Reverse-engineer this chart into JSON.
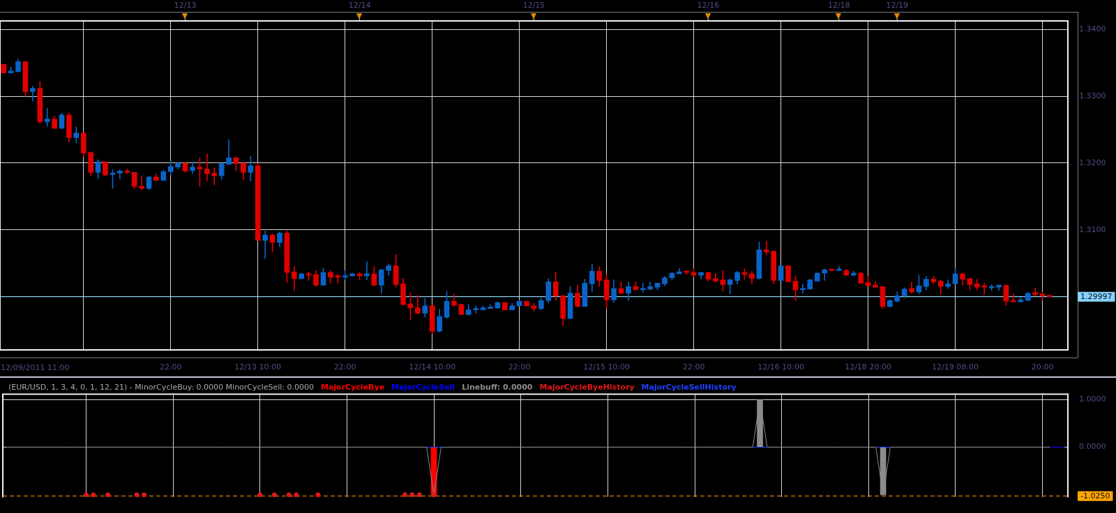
{
  "chart_data": [
    {
      "type": "candlestick",
      "categories": [
        null,
        null,
        null,
        null,
        null,
        null,
        null,
        null,
        null,
        null,
        null,
        null,
        null,
        null,
        null,
        null,
        null,
        null,
        null,
        null,
        null,
        null,
        null,
        "22:00",
        null,
        "12/13",
        null,
        null,
        null,
        null,
        null,
        null,
        null,
        null,
        null,
        "12/13 10:00",
        null,
        null,
        null,
        null,
        null,
        null,
        null,
        null,
        null,
        null,
        null,
        "22:00",
        null,
        "12/14",
        null,
        null,
        null,
        null,
        null,
        null,
        null,
        null,
        null,
        "12/14 10:00",
        null,
        null,
        null,
        null,
        null,
        null,
        null,
        null,
        null,
        null,
        null,
        "22:00",
        null,
        "12/15",
        null,
        null,
        null,
        null,
        null,
        null,
        null,
        null,
        null,
        "12/15 10:00",
        null,
        null,
        null,
        null,
        null,
        null,
        null,
        null,
        null,
        null,
        null,
        "22:00",
        null,
        "12/16",
        null,
        null,
        null,
        null,
        null,
        null,
        null,
        null,
        null,
        "12/16 10:00",
        null,
        null,
        null,
        null,
        null,
        null,
        null,
        "12/18",
        null,
        null,
        null,
        "12/18 20:00",
        null,
        null,
        null,
        "12/19",
        null,
        null,
        null,
        null,
        null,
        null,
        null,
        "12/19 08:00",
        null,
        null,
        null,
        null,
        null,
        null,
        null,
        null,
        null,
        null,
        null,
        "20:00",
        null,
        null,
        null
      ],
      "ohlc": [
        [
          1.3348,
          1.3348,
          1.3335,
          1.3335
        ],
        [
          1.3335,
          1.3344,
          1.3335,
          1.3338
        ],
        [
          1.3337,
          1.3356,
          1.3336,
          1.3352
        ],
        [
          1.3352,
          1.3352,
          1.33,
          1.3307
        ],
        [
          1.3307,
          1.3315,
          1.3293,
          1.3312
        ],
        [
          1.3312,
          1.3322,
          1.3259,
          1.3262
        ],
        [
          1.3262,
          1.3282,
          1.3255,
          1.3266
        ],
        [
          1.3266,
          1.327,
          1.3252,
          1.3252
        ],
        [
          1.3252,
          1.3275,
          1.3252,
          1.3272
        ],
        [
          1.3272,
          1.3275,
          1.3231,
          1.3238
        ],
        [
          1.3238,
          1.3254,
          1.323,
          1.3245
        ],
        [
          1.3245,
          1.3245,
          1.3209,
          1.3215
        ],
        [
          1.3216,
          1.3217,
          1.3181,
          1.3186
        ],
        [
          1.3186,
          1.3205,
          1.3177,
          1.3202
        ],
        [
          1.3202,
          1.3202,
          1.3181,
          1.3182
        ],
        [
          1.3183,
          1.319,
          1.3162,
          1.3185
        ],
        [
          1.3185,
          1.319,
          1.3176,
          1.3188
        ],
        [
          1.3188,
          1.3191,
          1.3184,
          1.3186
        ],
        [
          1.3186,
          1.3186,
          1.3162,
          1.3165
        ],
        [
          1.3165,
          1.318,
          1.316,
          1.3162
        ],
        [
          1.3162,
          1.318,
          1.316,
          1.3179
        ],
        [
          1.3179,
          1.3184,
          1.3173,
          1.3174
        ],
        [
          1.3174,
          1.3189,
          1.3174,
          1.3187
        ],
        [
          1.3187,
          1.3203,
          1.3182,
          1.3195
        ],
        [
          1.3194,
          1.3201,
          1.3191,
          1.32
        ],
        [
          1.32,
          1.32,
          1.3186,
          1.3188
        ],
        [
          1.3189,
          1.3202,
          1.3184,
          1.3194
        ],
        [
          1.3194,
          1.3208,
          1.3165,
          1.3191
        ],
        [
          1.3191,
          1.3214,
          1.3173,
          1.3184
        ],
        [
          1.3185,
          1.3193,
          1.3167,
          1.3181
        ],
        [
          1.3181,
          1.32,
          1.3175,
          1.3199
        ],
        [
          1.3198,
          1.3235,
          1.3198,
          1.3208
        ],
        [
          1.3208,
          1.3209,
          1.3188,
          1.3199
        ],
        [
          1.32,
          1.32,
          1.3175,
          1.3186
        ],
        [
          1.3186,
          1.321,
          1.3173,
          1.3196
        ],
        [
          1.3196,
          1.32,
          1.3084,
          1.3084
        ],
        [
          1.3084,
          1.3098,
          1.3057,
          1.3092
        ],
        [
          1.3092,
          1.3094,
          1.3067,
          1.3081
        ],
        [
          1.3081,
          1.3097,
          1.3075,
          1.3095
        ],
        [
          1.3095,
          1.3098,
          1.3021,
          1.3036
        ],
        [
          1.3037,
          1.3045,
          1.3009,
          1.3027
        ],
        [
          1.3027,
          1.3035,
          1.3026,
          1.3034
        ],
        [
          1.3034,
          1.3037,
          1.3024,
          1.3032
        ],
        [
          1.3033,
          1.3039,
          1.3015,
          1.3017
        ],
        [
          1.3017,
          1.3042,
          1.3017,
          1.3036
        ],
        [
          1.3036,
          1.3039,
          1.302,
          1.3029
        ],
        [
          1.303,
          1.3033,
          1.302,
          1.3029
        ],
        [
          1.3029,
          1.3039,
          1.3025,
          1.3031
        ],
        [
          1.3031,
          1.3035,
          1.303,
          1.3034
        ],
        [
          1.3034,
          1.3036,
          1.3025,
          1.3031
        ],
        [
          1.3031,
          1.3052,
          1.3025,
          1.3034
        ],
        [
          1.3034,
          1.3045,
          1.3016,
          1.3017
        ],
        [
          1.3017,
          1.3041,
          1.3005,
          1.304
        ],
        [
          1.3039,
          1.3049,
          1.3032,
          1.3046
        ],
        [
          1.3046,
          1.3063,
          1.3014,
          1.3018
        ],
        [
          1.3019,
          1.3027,
          1.2987,
          1.2988
        ],
        [
          1.2989,
          1.3006,
          1.2965,
          1.2983
        ],
        [
          1.2983,
          1.3002,
          1.2974,
          1.2975
        ],
        [
          1.2975,
          1.2997,
          1.2969,
          1.2986
        ],
        [
          1.2986,
          1.2987,
          1.2944,
          1.2948
        ],
        [
          1.2948,
          1.2981,
          1.2947,
          1.297
        ],
        [
          1.2969,
          1.3008,
          1.2967,
          1.2993
        ],
        [
          1.2993,
          1.3004,
          1.2985,
          1.2987
        ],
        [
          1.2988,
          1.2989,
          1.2973,
          1.2973
        ],
        [
          1.2973,
          1.2988,
          1.2972,
          1.298
        ],
        [
          1.298,
          1.2986,
          1.2975,
          1.2981
        ],
        [
          1.298,
          1.2986,
          1.298,
          1.2983
        ],
        [
          1.2982,
          1.2988,
          1.2982,
          1.2983
        ],
        [
          1.2983,
          1.2992,
          1.2982,
          1.2991
        ],
        [
          1.2991,
          1.2991,
          1.298,
          1.298
        ],
        [
          1.298,
          1.299,
          1.298,
          1.2986
        ],
        [
          1.2986,
          1.2994,
          1.2986,
          1.2993
        ],
        [
          1.2993,
          1.2993,
          1.2986,
          1.2986
        ],
        [
          1.2986,
          1.299,
          1.2978,
          1.2982
        ],
        [
          1.2982,
          1.2998,
          1.298,
          1.2994
        ],
        [
          1.2994,
          1.3027,
          1.299,
          1.3022
        ],
        [
          1.3022,
          1.3037,
          1.2994,
          1.3001
        ],
        [
          1.3001,
          1.3002,
          1.2956,
          1.2967
        ],
        [
          1.2967,
          1.3015,
          1.2967,
          1.3005
        ],
        [
          1.3005,
          1.3017,
          1.2984,
          1.2985
        ],
        [
          1.2985,
          1.3026,
          1.2985,
          1.302
        ],
        [
          1.3019,
          1.3048,
          1.3007,
          1.3038
        ],
        [
          1.3038,
          1.3045,
          1.3015,
          1.3024
        ],
        [
          1.3025,
          1.3033,
          1.2982,
          1.2995
        ],
        [
          1.2995,
          1.3025,
          1.2991,
          1.3012
        ],
        [
          1.3012,
          1.3022,
          1.3004,
          1.3005
        ],
        [
          1.3005,
          1.3022,
          1.2994,
          1.3015
        ],
        [
          1.3015,
          1.3022,
          1.301,
          1.301
        ],
        [
          1.301,
          1.302,
          1.3006,
          1.3012
        ],
        [
          1.3011,
          1.3022,
          1.301,
          1.3015
        ],
        [
          1.3014,
          1.302,
          1.301,
          1.302
        ],
        [
          1.3019,
          1.303,
          1.3016,
          1.3028
        ],
        [
          1.3028,
          1.3036,
          1.3025,
          1.3035
        ],
        [
          1.3034,
          1.3042,
          1.3034,
          1.3037
        ],
        [
          1.3037,
          1.3039,
          1.3033,
          1.3036
        ],
        [
          1.3036,
          1.3042,
          1.303,
          1.3032
        ],
        [
          1.3032,
          1.3036,
          1.3026,
          1.3036
        ],
        [
          1.3036,
          1.3036,
          1.3023,
          1.3026
        ],
        [
          1.3027,
          1.3035,
          1.3022,
          1.3023
        ],
        [
          1.3025,
          1.3039,
          1.3008,
          1.3018
        ],
        [
          1.3018,
          1.3027,
          1.3004,
          1.3025
        ],
        [
          1.3024,
          1.3038,
          1.3019,
          1.3036
        ],
        [
          1.3036,
          1.3042,
          1.3026,
          1.3033
        ],
        [
          1.3034,
          1.3038,
          1.3019,
          1.3027
        ],
        [
          1.3027,
          1.3082,
          1.3026,
          1.307
        ],
        [
          1.307,
          1.3083,
          1.3062,
          1.3067
        ],
        [
          1.3068,
          1.3068,
          1.3019,
          1.3024
        ],
        [
          1.3024,
          1.3046,
          1.3024,
          1.3046
        ],
        [
          1.3046,
          1.3047,
          1.3022,
          1.3022
        ],
        [
          1.3023,
          1.3031,
          1.2994,
          1.301
        ],
        [
          1.301,
          1.3019,
          1.3005,
          1.3012
        ],
        [
          1.3011,
          1.3026,
          1.3011,
          1.3025
        ],
        [
          1.3023,
          1.3036,
          1.3023,
          1.3035
        ],
        [
          1.3035,
          1.3041,
          1.3024,
          1.304
        ],
        [
          1.304,
          1.304,
          1.3039,
          1.3039
        ],
        [
          1.3039,
          1.3045,
          1.3039,
          1.304
        ],
        [
          1.3039,
          1.3041,
          1.3031,
          1.3032
        ],
        [
          1.3032,
          1.3038,
          1.3031,
          1.3035
        ],
        [
          1.3035,
          1.3036,
          1.302,
          1.302
        ],
        [
          1.3021,
          1.303,
          1.3016,
          1.3016
        ],
        [
          1.3017,
          1.3022,
          1.3014,
          1.3014
        ],
        [
          1.3015,
          1.3015,
          1.2982,
          1.2985
        ],
        [
          1.2985,
          1.2995,
          1.2984,
          1.2994
        ],
        [
          1.2993,
          1.3007,
          1.2992,
          1.3001
        ],
        [
          1.3001,
          1.3013,
          1.2998,
          1.3011
        ],
        [
          1.3012,
          1.3022,
          1.3005,
          1.3007
        ],
        [
          1.3007,
          1.3032,
          1.3004,
          1.3016
        ],
        [
          1.3015,
          1.303,
          1.301,
          1.3026
        ],
        [
          1.3026,
          1.303,
          1.3019,
          1.3022
        ],
        [
          1.3023,
          1.3024,
          1.3003,
          1.3015
        ],
        [
          1.3015,
          1.3025,
          1.3012,
          1.3019
        ],
        [
          1.3019,
          1.3042,
          1.3019,
          1.3034
        ],
        [
          1.3034,
          1.3035,
          1.3017,
          1.3026
        ],
        [
          1.3027,
          1.3027,
          1.301,
          1.3018
        ],
        [
          1.3019,
          1.3026,
          1.301,
          1.3014
        ],
        [
          1.3015,
          1.302,
          1.3003,
          1.3014
        ],
        [
          1.3013,
          1.3018,
          1.3009,
          1.3015
        ],
        [
          1.3014,
          1.3017,
          1.3009,
          1.3017
        ],
        [
          1.3017,
          1.3017,
          1.2987,
          1.2993
        ],
        [
          1.2994,
          1.3004,
          1.2992,
          1.2992
        ],
        [
          1.2992,
          1.2999,
          1.2992,
          1.2995
        ],
        [
          1.2994,
          1.3006,
          1.2994,
          1.3005
        ],
        [
          1.3006,
          1.3013,
          1.3001,
          1.3003
        ],
        [
          1.3004,
          1.3007,
          1.2995,
          1.3001
        ],
        [
          1.3001,
          1.3001,
          1.29997,
          1.29997
        ],
        null,
        null
      ],
      "colors": [
        "#e00000",
        "#0a64c8",
        "#0a64c8",
        "#e00000",
        "#0a64c8",
        "#e00000",
        "#0a64c8",
        "#e00000",
        "#0a64c8",
        "#e00000",
        "#0a64c8",
        "#e00000",
        "#e00000",
        "#0a64c8",
        "#e00000",
        "#0a64c8",
        "#0a64c8",
        "#e00000",
        "#e00000",
        "#e00000",
        "#0a64c8",
        "#e00000",
        "#0a64c8",
        "#0a64c8",
        "#0a64c8",
        "#e00000",
        "#0a64c8",
        "#e00000",
        "#e00000",
        "#e00000",
        "#0a64c8",
        "#0a64c8",
        "#e00000",
        "#e00000",
        "#0a64c8",
        "#e00000",
        "#0a64c8",
        "#e00000",
        "#0a64c8",
        "#e00000",
        "#e00000",
        "#0a64c8",
        "#e00000",
        "#e00000",
        "#0a64c8",
        "#e00000",
        "#e00000",
        "#0a64c8",
        "#0a64c8",
        "#e00000",
        "#0a64c8",
        "#e00000",
        "#0a64c8",
        "#0a64c8",
        "#e00000",
        "#e00000",
        "#e00000",
        "#e00000",
        "#0a64c8",
        "#e00000",
        "#0a64c8",
        "#0a64c8",
        "#e00000",
        "#e00000",
        "#0a64c8",
        "#0a64c8",
        "#0a64c8",
        "#0a64c8",
        "#0a64c8",
        "#e00000",
        "#0a64c8",
        "#0a64c8",
        "#e00000",
        "#e00000",
        "#0a64c8",
        "#0a64c8",
        "#e00000",
        "#e00000",
        "#0a64c8",
        "#e00000",
        "#0a64c8",
        "#0a64c8",
        "#e00000",
        "#e00000",
        "#0a64c8",
        "#e00000",
        "#0a64c8",
        "#e00000",
        "#0a64c8",
        "#0a64c8",
        "#0a64c8",
        "#0a64c8",
        "#0a64c8",
        "#0a64c8",
        "#e00000",
        "#e00000",
        "#0a64c8",
        "#e00000",
        "#e00000",
        "#e00000",
        "#0a64c8",
        "#0a64c8",
        "#e00000",
        "#e00000",
        "#0a64c8",
        "#e00000",
        "#e00000",
        "#0a64c8",
        "#e00000",
        "#e00000",
        "#0a64c8",
        "#0a64c8",
        "#0a64c8",
        "#0a64c8",
        "#e00000",
        "#0a64c8",
        "#e00000",
        "#0a64c8",
        "#e00000",
        "#e00000",
        "#e00000",
        "#e00000",
        "#0a64c8",
        "#0a64c8",
        "#0a64c8",
        "#e00000",
        "#0a64c8",
        "#0a64c8",
        "#e00000",
        "#e00000",
        "#0a64c8",
        "#0a64c8",
        "#e00000",
        "#e00000",
        "#e00000",
        "#e00000",
        "#0a64c8",
        "#0a64c8",
        "#e00000",
        "#e00000",
        "#0a64c8",
        "#0a64c8",
        "#e00000",
        "#e00000",
        "#e00000",
        null,
        null
      ],
      "ylim": [
        1.292,
        1.3413
      ],
      "yticks": [
        {
          "value": 1.34,
          "label": "1.3400"
        },
        {
          "value": 1.33,
          "label": "1.3300"
        },
        {
          "value": 1.32,
          "label": "1.3200"
        },
        {
          "value": 1.31,
          "label": "1.3100"
        },
        {
          "value": 1.3,
          "label": null
        }
      ],
      "ref_lines": [
        {
          "axis": "y",
          "value": 1.29997,
          "label": "1.29997",
          "color": "#87d3fa"
        }
      ],
      "annotations": [
        "12/09/2011 11:00"
      ],
      "grid": true
    },
    {
      "type": "line",
      "title": "(EUR/USD, 1, 3, 4, 0, 1, 12, 21) - MinorCycleBuy: 0.0000 MinorCycleSell: 0.0000",
      "legend": "top",
      "categories": [
        null,
        null,
        null,
        null,
        null,
        null,
        null,
        null,
        null,
        null,
        null,
        null,
        null,
        null,
        null,
        null,
        null,
        null,
        null,
        null,
        null,
        null,
        null,
        null,
        null,
        null,
        null,
        null,
        null,
        null,
        null,
        null,
        null,
        null,
        null,
        null,
        null,
        null,
        null,
        null,
        null,
        null,
        null,
        null,
        null,
        null,
        null,
        null,
        null,
        null,
        null,
        null,
        null,
        null,
        null,
        null,
        null,
        null,
        null,
        null,
        null,
        null,
        null,
        null,
        null,
        null,
        null,
        null,
        null,
        null,
        null,
        null,
        null,
        null,
        null,
        null,
        null,
        null,
        null,
        null,
        null,
        null,
        null,
        null,
        null,
        null,
        null,
        null,
        null,
        null,
        null,
        null,
        null,
        null,
        null,
        null,
        null,
        null,
        null,
        null,
        null,
        null,
        null,
        null,
        null,
        null,
        null,
        null,
        null,
        null,
        null,
        null,
        null,
        null,
        null,
        null,
        null,
        null,
        null,
        null,
        null,
        null,
        null,
        null,
        null,
        null,
        null,
        null,
        null,
        null,
        null,
        null,
        null,
        null,
        null,
        null,
        null,
        null,
        null,
        null,
        null,
        null,
        null,
        null,
        null,
        null,
        null
      ],
      "series": [
        {
          "name": "MajorCycleBye",
          "type": "bar",
          "color": "#ff0000",
          "values": [
            null,
            null,
            null,
            null,
            null,
            null,
            null,
            null,
            null,
            null,
            null,
            null,
            null,
            null,
            null,
            null,
            null,
            null,
            null,
            null,
            null,
            null,
            null,
            null,
            null,
            null,
            null,
            null,
            null,
            null,
            null,
            null,
            null,
            null,
            null,
            null,
            null,
            null,
            null,
            null,
            null,
            null,
            null,
            null,
            null,
            null,
            null,
            null,
            null,
            null,
            null,
            null,
            null,
            null,
            null,
            null,
            null,
            null,
            null,
            -1,
            null,
            null,
            null,
            null,
            null,
            null,
            null,
            null,
            null,
            null,
            null,
            null,
            null,
            null,
            null,
            null,
            null,
            null,
            null,
            null,
            null,
            null,
            null,
            null,
            null,
            null,
            null,
            null,
            null,
            null,
            null,
            null,
            null,
            null,
            null,
            null,
            null,
            null,
            null,
            null,
            null,
            null,
            null,
            null,
            null,
            null,
            null,
            null,
            null,
            null,
            null,
            null,
            null,
            null,
            null,
            null,
            null,
            null,
            null,
            null,
            null,
            null,
            null,
            null,
            null,
            null,
            null,
            null,
            null,
            null,
            null,
            null,
            null,
            null,
            null,
            null,
            null,
            null,
            null,
            null,
            null,
            null,
            null,
            null,
            null,
            null,
            null
          ]
        },
        {
          "name": "MajorCycleSell",
          "color": "#0000ff",
          "values": [
            null,
            null,
            null,
            null,
            null,
            null,
            null,
            null,
            null,
            null,
            null,
            null,
            null,
            null,
            null,
            null,
            null,
            null,
            null,
            null,
            null,
            null,
            null,
            null,
            null,
            null,
            null,
            null,
            null,
            null,
            null,
            null,
            null,
            null,
            null,
            null,
            null,
            null,
            null,
            null,
            null,
            null,
            null,
            null,
            null,
            null,
            null,
            null,
            null,
            null,
            null,
            null,
            null,
            null,
            null,
            null,
            null,
            null,
            null,
            null,
            null,
            null,
            null,
            null,
            null,
            null,
            null,
            null,
            null,
            null,
            null,
            null,
            null,
            null,
            null,
            null,
            null,
            null,
            null,
            null,
            null,
            null,
            null,
            null,
            null,
            null,
            null,
            null,
            null,
            null,
            null,
            null,
            null,
            null,
            null,
            null,
            null,
            null,
            null,
            null,
            null,
            null,
            null,
            null,
            null,
            null,
            null,
            null,
            null,
            null,
            null,
            null,
            null,
            null,
            null,
            null,
            null,
            null,
            null,
            null,
            null,
            null,
            null,
            null,
            null,
            null,
            null,
            null,
            null,
            null,
            null,
            null,
            null,
            null,
            null,
            null,
            null,
            null,
            null,
            null,
            null,
            null,
            null,
            null,
            0,
            0,
            0
          ]
        },
        {
          "name": "Linebuff: 0.0000",
          "color": "#8c8c8c",
          "values": [
            0,
            0,
            0,
            0,
            0,
            0,
            0,
            0,
            0,
            0,
            0,
            0,
            0,
            0,
            0,
            0,
            0,
            0,
            0,
            0,
            0,
            0,
            0,
            0,
            0,
            0,
            0,
            0,
            0,
            0,
            0,
            0,
            0,
            0,
            0,
            0,
            0,
            0,
            0,
            0,
            0,
            0,
            0,
            0,
            0,
            0,
            0,
            0,
            0,
            0,
            0,
            0,
            0,
            0,
            0,
            0,
            0,
            0,
            0,
            -1,
            0,
            0,
            0,
            0,
            0,
            0,
            0,
            0,
            0,
            0,
            0,
            0,
            0,
            0,
            0,
            0,
            0,
            0,
            0,
            0,
            0,
            0,
            0,
            0,
            0,
            0,
            0,
            0,
            0,
            0,
            0,
            0,
            0,
            0,
            0,
            0,
            0,
            0,
            0,
            0,
            0,
            0,
            0,
            0,
            1,
            0,
            0,
            0,
            0,
            0,
            0,
            0,
            0,
            0,
            0,
            0,
            0,
            0,
            0,
            0,
            0,
            -1,
            0,
            0,
            0,
            0,
            0,
            0,
            0,
            0,
            0,
            0,
            0,
            0,
            0,
            0,
            0,
            0,
            0,
            0,
            0,
            0,
            0,
            0,
            0,
            null,
            null
          ]
        },
        {
          "name": "MajorCycleByeHistory",
          "type": "scatter",
          "marker": "circle",
          "color": "#e01818",
          "values": [
            null,
            null,
            null,
            null,
            null,
            null,
            null,
            null,
            null,
            null,
            null,
            -1,
            -1,
            null,
            -1,
            null,
            null,
            null,
            -1,
            -1,
            null,
            null,
            null,
            null,
            null,
            null,
            null,
            null,
            null,
            null,
            null,
            null,
            null,
            null,
            null,
            -1,
            null,
            -1,
            null,
            -1,
            -1,
            null,
            null,
            -1,
            null,
            null,
            null,
            null,
            null,
            null,
            null,
            null,
            null,
            null,
            null,
            -1,
            -1,
            -1,
            null,
            -1,
            null,
            null,
            null,
            null,
            null,
            null,
            null,
            null,
            null,
            null,
            null,
            null,
            null,
            null,
            null,
            null,
            null,
            null,
            null,
            null,
            null,
            null,
            null,
            null,
            null,
            null,
            null,
            null,
            null,
            null,
            null,
            null,
            null,
            null,
            null,
            null,
            null,
            null,
            null,
            null,
            null,
            null,
            null,
            null,
            null,
            null,
            null,
            null,
            null,
            null,
            null,
            null,
            null,
            null,
            null,
            null,
            null,
            null,
            null,
            null,
            null,
            null,
            null,
            null,
            null,
            null,
            null,
            null,
            null,
            null,
            null,
            null,
            null,
            null,
            null,
            null,
            null,
            null,
            null,
            null,
            null,
            null,
            null,
            null,
            null,
            null,
            null
          ]
        },
        {
          "name": "MajorCycleSellHistory",
          "color": "#2040ff",
          "values": [
            null,
            null,
            null,
            null,
            null,
            null,
            null,
            null,
            null,
            null,
            null,
            null,
            null,
            null,
            null,
            null,
            null,
            null,
            null,
            null,
            null,
            null,
            null,
            null,
            null,
            null,
            null,
            null,
            null,
            null,
            null,
            null,
            null,
            null,
            null,
            null,
            null,
            null,
            null,
            null,
            null,
            null,
            null,
            null,
            null,
            null,
            null,
            null,
            null,
            null,
            null,
            null,
            null,
            null,
            null,
            null,
            null,
            null,
            0,
            0,
            0,
            null,
            null,
            null,
            null,
            null,
            null,
            null,
            null,
            null,
            null,
            null,
            null,
            null,
            null,
            null,
            null,
            null,
            null,
            null,
            null,
            null,
            null,
            null,
            null,
            null,
            null,
            null,
            null,
            null,
            null,
            null,
            null,
            null,
            null,
            null,
            null,
            null,
            null,
            null,
            null,
            null,
            null,
            0,
            0,
            0,
            null,
            null,
            null,
            null,
            null,
            null,
            null,
            null,
            null,
            null,
            null,
            null,
            null,
            null,
            0,
            0,
            0,
            null,
            null,
            null,
            null,
            null,
            null,
            null,
            null,
            null,
            null,
            null,
            null,
            null,
            null,
            null,
            null,
            null,
            null,
            null,
            null,
            null,
            null,
            null,
            null
          ]
        },
        {
          "type": "bar",
          "color": "#8c8c8c",
          "values": [
            null,
            null,
            null,
            null,
            null,
            null,
            null,
            null,
            null,
            null,
            null,
            null,
            null,
            null,
            null,
            null,
            null,
            null,
            null,
            null,
            null,
            null,
            null,
            null,
            null,
            null,
            null,
            null,
            null,
            null,
            null,
            null,
            null,
            null,
            null,
            null,
            null,
            null,
            null,
            null,
            null,
            null,
            null,
            null,
            null,
            null,
            null,
            null,
            null,
            null,
            null,
            null,
            null,
            null,
            null,
            null,
            null,
            null,
            null,
            null,
            null,
            null,
            null,
            null,
            null,
            null,
            null,
            null,
            null,
            null,
            null,
            null,
            null,
            null,
            null,
            null,
            null,
            null,
            null,
            null,
            null,
            null,
            null,
            null,
            null,
            null,
            null,
            null,
            null,
            null,
            null,
            null,
            null,
            null,
            null,
            null,
            null,
            null,
            null,
            null,
            null,
            null,
            null,
            null,
            1,
            null,
            null,
            null,
            null,
            null,
            null,
            null,
            null,
            null,
            null,
            null,
            null,
            null,
            null,
            null,
            null,
            -1,
            null,
            null,
            null,
            null,
            null,
            null,
            null,
            null,
            null,
            null,
            null,
            null,
            null,
            null,
            null,
            null,
            null,
            null,
            null,
            null,
            null,
            null,
            null,
            null,
            null
          ]
        }
      ],
      "ylim": [
        -1.05,
        1.11
      ],
      "yticks": [
        {
          "value": 1,
          "label": "1.0000"
        },
        {
          "value": 0,
          "label": "0.0000"
        }
      ],
      "ref_lines": [
        {
          "axis": "y",
          "value": -1.025,
          "label": "-1.0250",
          "color": "#ffa500",
          "line_style": "dashed"
        }
      ],
      "grid": true,
      "tick_labels": "y"
    }
  ]
}
